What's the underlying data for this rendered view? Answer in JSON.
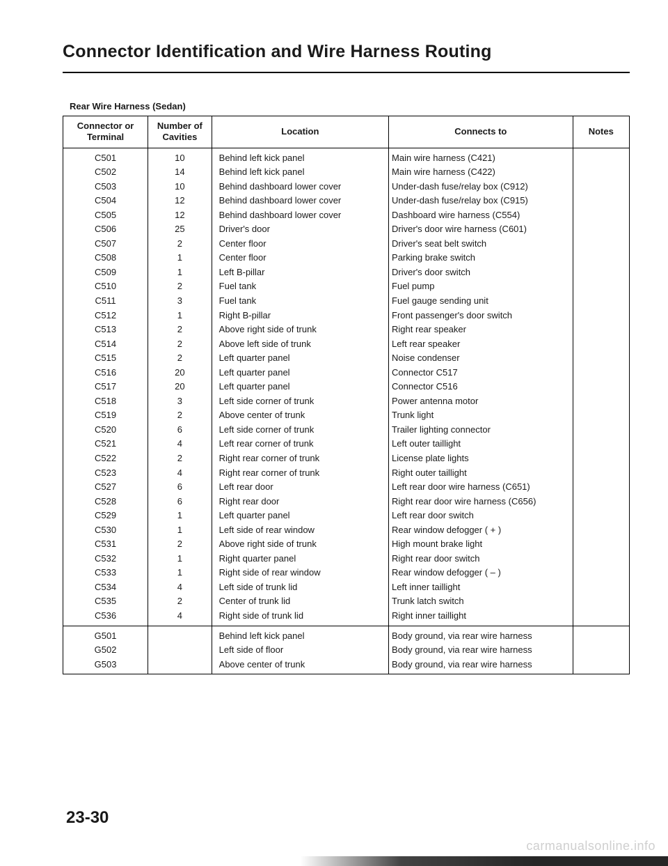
{
  "title": "Connector Identification and Wire Harness Routing",
  "subhead": "Rear Wire Harness (Sedan)",
  "headers": {
    "terminal": "Connector or\nTerminal",
    "cavities": "Number of\nCavities",
    "location": "Location",
    "connects": "Connects to",
    "notes": "Notes"
  },
  "section1": [
    {
      "term": "C501",
      "cav": "10",
      "loc": "Behind left kick panel",
      "conn": "Main wire harness (C421)"
    },
    {
      "term": "C502",
      "cav": "14",
      "loc": "Behind left kick panel",
      "conn": "Main wire harness (C422)"
    },
    {
      "term": "C503",
      "cav": "10",
      "loc": "Behind dashboard lower cover",
      "conn": "Under-dash fuse/relay box (C912)"
    },
    {
      "term": "C504",
      "cav": "12",
      "loc": "Behind dashboard lower cover",
      "conn": "Under-dash fuse/relay box (C915)"
    },
    {
      "term": "C505",
      "cav": "12",
      "loc": "Behind dashboard lower cover",
      "conn": "Dashboard wire harness (C554)"
    },
    {
      "term": "C506",
      "cav": "25",
      "loc": "Driver's door",
      "conn": "Driver's door wire harness (C601)"
    },
    {
      "term": "C507",
      "cav": "2",
      "loc": "Center floor",
      "conn": "Driver's seat belt switch"
    },
    {
      "term": "C508",
      "cav": "1",
      "loc": "Center floor",
      "conn": "Parking brake switch"
    },
    {
      "term": "C509",
      "cav": "1",
      "loc": "Left B-pillar",
      "conn": "Driver's door switch"
    },
    {
      "term": "C510",
      "cav": "2",
      "loc": "Fuel tank",
      "conn": "Fuel pump"
    },
    {
      "term": "C511",
      "cav": "3",
      "loc": "Fuel tank",
      "conn": "Fuel gauge sending unit"
    },
    {
      "term": "C512",
      "cav": "1",
      "loc": "Right B-pillar",
      "conn": "Front passenger's door switch"
    },
    {
      "term": "C513",
      "cav": "2",
      "loc": "Above right side of trunk",
      "conn": "Right rear speaker"
    },
    {
      "term": "C514",
      "cav": "2",
      "loc": "Above left side of trunk",
      "conn": "Left rear speaker"
    },
    {
      "term": "C515",
      "cav": "2",
      "loc": "Left quarter panel",
      "conn": "Noise condenser"
    },
    {
      "term": "C516",
      "cav": "20",
      "loc": "Left quarter panel",
      "conn": "Connector C517"
    },
    {
      "term": "C517",
      "cav": "20",
      "loc": "Left quarter panel",
      "conn": "Connector C516"
    },
    {
      "term": "C518",
      "cav": "3",
      "loc": "Left side corner of trunk",
      "conn": "Power antenna motor"
    },
    {
      "term": "C519",
      "cav": "2",
      "loc": "Above center of trunk",
      "conn": "Trunk light"
    },
    {
      "term": "C520",
      "cav": "6",
      "loc": "Left side corner of trunk",
      "conn": "Trailer lighting connector"
    },
    {
      "term": "C521",
      "cav": "4",
      "loc": "Left rear corner of trunk",
      "conn": "Left outer taillight"
    },
    {
      "term": "C522",
      "cav": "2",
      "loc": "Right rear corner of trunk",
      "conn": "License plate lights"
    },
    {
      "term": "C523",
      "cav": "4",
      "loc": "Right rear corner of trunk",
      "conn": "Right outer taillight"
    },
    {
      "term": "C527",
      "cav": "6",
      "loc": "Left rear door",
      "conn": "Left rear door wire harness (C651)"
    },
    {
      "term": "C528",
      "cav": "6",
      "loc": "Right rear door",
      "conn": "Right rear door wire harness (C656)"
    },
    {
      "term": "C529",
      "cav": "1",
      "loc": "Left quarter panel",
      "conn": "Left rear door switch"
    },
    {
      "term": "C530",
      "cav": "1",
      "loc": "Left side of rear window",
      "conn": "Rear window defogger ( + )"
    },
    {
      "term": "C531",
      "cav": "2",
      "loc": "Above right side of trunk",
      "conn": "High mount brake light"
    },
    {
      "term": "C532",
      "cav": "1",
      "loc": "Right quarter panel",
      "conn": "Right rear door switch"
    },
    {
      "term": "C533",
      "cav": "1",
      "loc": "Right side of rear window",
      "conn": "Rear window defogger ( – )"
    },
    {
      "term": "C534",
      "cav": "4",
      "loc": "Left side of trunk lid",
      "conn": "Left inner taillight"
    },
    {
      "term": "C535",
      "cav": "2",
      "loc": "Center of trunk lid",
      "conn": "Trunk latch switch"
    },
    {
      "term": "C536",
      "cav": "4",
      "loc": "Right side of trunk lid",
      "conn": "Right inner taillight"
    }
  ],
  "section2": [
    {
      "term": "G501",
      "cav": "",
      "loc": "Behind left kick panel",
      "conn": "Body ground, via rear wire harness"
    },
    {
      "term": "G502",
      "cav": "",
      "loc": "Left side of floor",
      "conn": "Body ground, via rear wire harness"
    },
    {
      "term": "G503",
      "cav": "",
      "loc": "Above center of trunk",
      "conn": "Body ground, via rear wire harness"
    }
  ],
  "page_number": "23-30",
  "watermark": "carmanualsonline.info"
}
